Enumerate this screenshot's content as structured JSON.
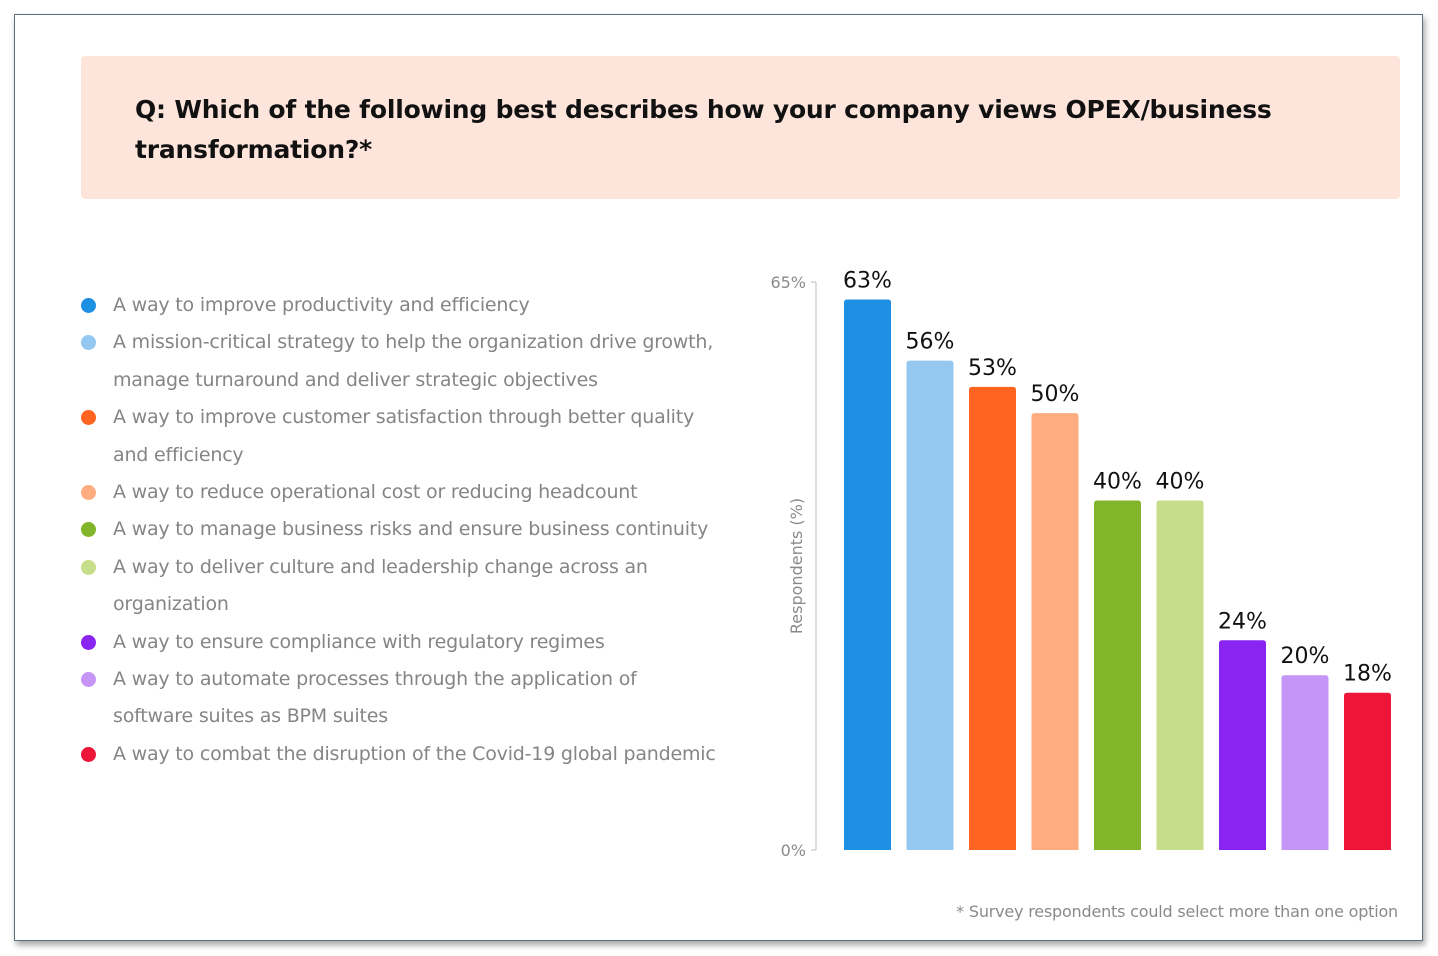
{
  "question": "Q: Which of the following best describes how your company views OPEX/business transformation?*",
  "footnote": "* Survey respondents could select more than one option",
  "legend": [
    {
      "label": "A way to improve productivity and efficiency",
      "color": "#1e90e3"
    },
    {
      "label": "A mission-critical strategy to help the organization drive growth, manage turnaround and deliver strategic objectives",
      "color": "#95c8f1"
    },
    {
      "label": "A way to improve customer satisfaction through better quality and efficiency",
      "color": "#ff6420"
    },
    {
      "label": "A way to reduce operational cost or reducing headcount",
      "color": "#feac80"
    },
    {
      "label": "A way to manage business risks and ensure business continuity",
      "color": "#83b52a"
    },
    {
      "label": "A way to deliver culture and leadership change across an organization",
      "color": "#c6dd89"
    },
    {
      "label": "A way to ensure compliance with regulatory regimes",
      "color": "#8a24f0"
    },
    {
      "label": "A way to automate processes through the application of software suites as BPM suites",
      "color": "#c696f6"
    },
    {
      "label": "A way to combat the disruption of the Covid-19 global pandemic",
      "color": "#ee1638"
    }
  ],
  "chart_data": {
    "type": "bar",
    "title": "",
    "xlabel": "",
    "ylabel": "Respondents (%)",
    "ylim": [
      0,
      65
    ],
    "ytick_labels": [
      "0%",
      "65%"
    ],
    "categories": [
      "A way to improve productivity and efficiency",
      "A mission-critical strategy to help the organization drive growth, manage turnaround and deliver strategic objectives",
      "A way to improve customer satisfaction through better quality and efficiency",
      "A way to reduce operational cost or reducing headcount",
      "A way to manage business risks and ensure business continuity",
      "A way to deliver culture and leadership change across an organization",
      "A way to ensure compliance with regulatory regimes",
      "A way to automate processes through the application of software suites as BPM suites",
      "A way to combat the disruption of the Covid-19 global pandemic"
    ],
    "values": [
      63,
      56,
      53,
      50,
      40,
      40,
      24,
      20,
      18
    ],
    "data_labels": [
      "63%",
      "56%",
      "53%",
      "50%",
      "40%",
      "40%",
      "24%",
      "20%",
      "18%"
    ],
    "colors": [
      "#1e90e3",
      "#95c8f1",
      "#ff6420",
      "#feac80",
      "#83b52a",
      "#c6dd89",
      "#8a24f0",
      "#c696f6",
      "#ee1638"
    ],
    "grid": false,
    "legend_position": "left"
  }
}
